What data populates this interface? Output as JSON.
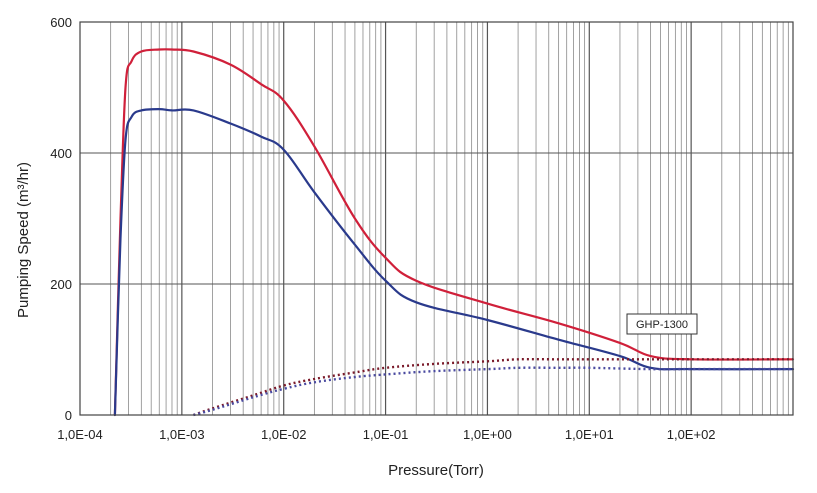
{
  "chart_data": {
    "type": "line",
    "title": "",
    "xlabel": "Pressure(Torr)",
    "ylabel": "Pumping Speed (m³/hr)",
    "xscale": "log",
    "xlim": [
      0.0001,
      1000
    ],
    "ylim": [
      0,
      600
    ],
    "grid": true,
    "x_tick_labels": [
      "1,0E-04",
      "1,0E-03",
      "1,0E-02",
      "1,0E-01",
      "1,0E+00",
      "1,0E+01",
      "1,0E+02"
    ],
    "y_tick_labels": [
      "0",
      "200",
      "400",
      "600"
    ],
    "y_ticks": [
      0,
      200,
      400,
      600
    ],
    "legend": {
      "label": "GHP-1300",
      "placement": "right, above curves"
    },
    "series": [
      {
        "name": "upper solid (red)",
        "style": "solid",
        "color": "#d0203a",
        "x": [
          0.00022,
          0.00025,
          0.00028,
          0.00032,
          0.0004,
          0.0006,
          0.0008,
          0.0013,
          0.003,
          0.006,
          0.01,
          0.02,
          0.05,
          0.1,
          0.2,
          1,
          5,
          20,
          40,
          100,
          1000
        ],
        "y": [
          0,
          300,
          500,
          540,
          555,
          558,
          558,
          555,
          535,
          505,
          480,
          410,
          300,
          240,
          205,
          170,
          140,
          110,
          90,
          85,
          85
        ]
      },
      {
        "name": "lower solid (blue)",
        "style": "solid",
        "color": "#2a3a8c",
        "x": [
          0.00022,
          0.00025,
          0.00028,
          0.00032,
          0.0004,
          0.0006,
          0.0008,
          0.0013,
          0.003,
          0.006,
          0.01,
          0.02,
          0.05,
          0.1,
          0.2,
          1,
          5,
          20,
          40,
          100,
          1000
        ],
        "y": [
          0,
          270,
          420,
          455,
          465,
          467,
          465,
          465,
          445,
          425,
          405,
          340,
          260,
          205,
          172,
          145,
          115,
          90,
          72,
          70,
          70
        ]
      },
      {
        "name": "upper dotted (dark red)",
        "style": "dotted",
        "color": "#7a1a2a",
        "x": [
          0.0013,
          0.002,
          0.005,
          0.01,
          0.02,
          0.05,
          0.1,
          0.3,
          1,
          2,
          5,
          10,
          40,
          100,
          1000
        ],
        "y": [
          0,
          10,
          30,
          45,
          55,
          65,
          72,
          78,
          82,
          85,
          85,
          85,
          85,
          85,
          85
        ]
      },
      {
        "name": "lower dotted (blue)",
        "style": "dotted",
        "color": "#4a4aa0",
        "x": [
          0.0013,
          0.002,
          0.005,
          0.01,
          0.02,
          0.05,
          0.1,
          0.3,
          1,
          2,
          5,
          10,
          40,
          100,
          1000
        ],
        "y": [
          0,
          8,
          27,
          40,
          50,
          58,
          62,
          67,
          70,
          72,
          72,
          72,
          70,
          70,
          70
        ]
      }
    ]
  }
}
